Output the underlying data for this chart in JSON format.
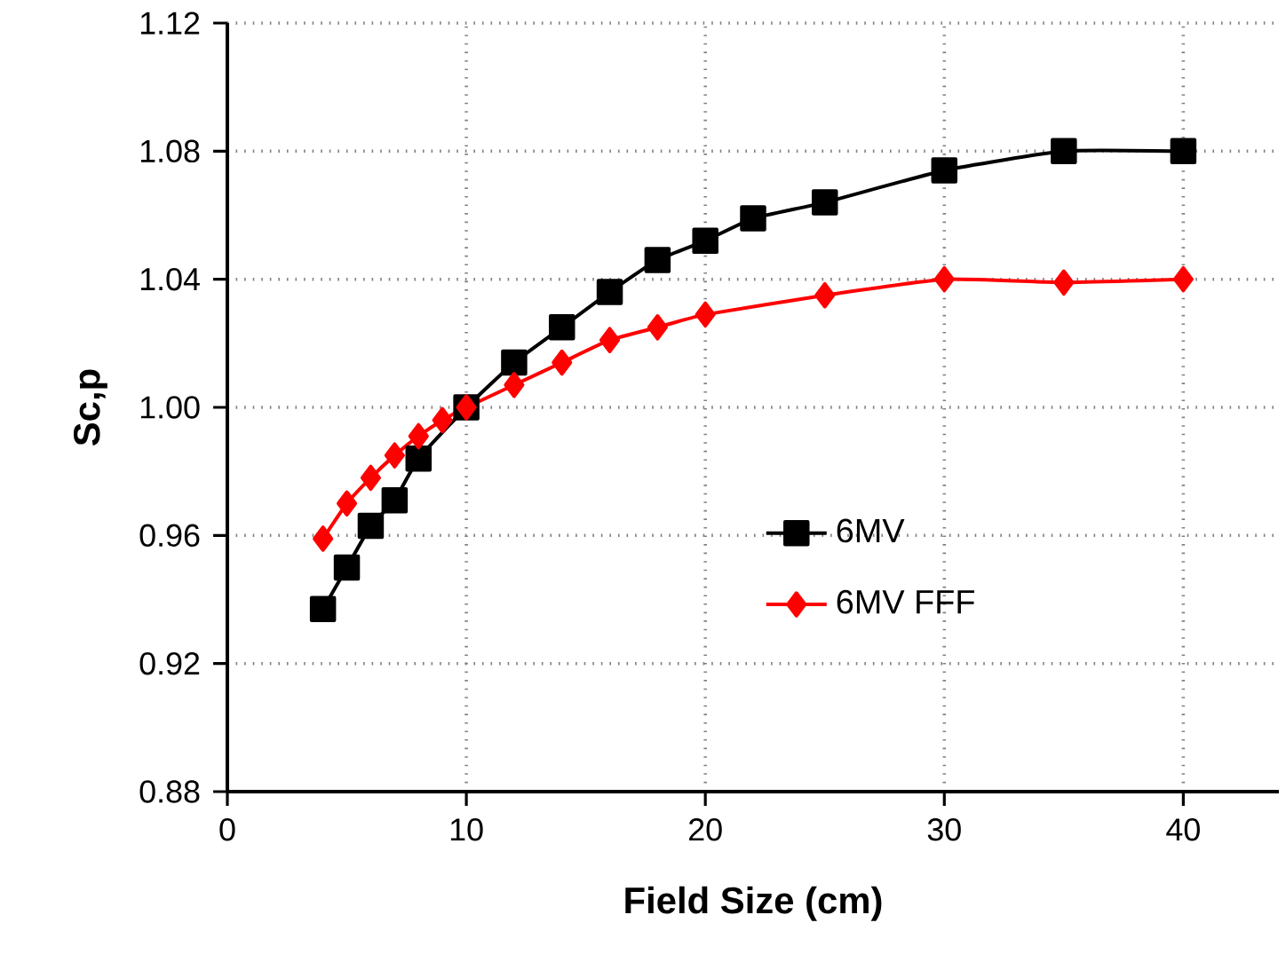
{
  "chart_data": {
    "type": "line",
    "xlabel": "Field Size (cm)",
    "ylabel": "Sc,p",
    "xlim": [
      0,
      44
    ],
    "xticks": [
      0,
      10,
      20,
      30,
      40
    ],
    "ylim": [
      0.88,
      1.12
    ],
    "yticks": [
      {
        "value": 0.88,
        "label": "0.88"
      },
      {
        "value": 0.92,
        "label": "0.92"
      },
      {
        "value": 0.96,
        "label": "0.96"
      },
      {
        "value": 1.0,
        "label": "1.00"
      },
      {
        "value": 1.04,
        "label": "1.04"
      },
      {
        "value": 1.08,
        "label": "1.08"
      },
      {
        "value": 1.12,
        "label": "1.12"
      }
    ],
    "grid": true,
    "legend": "right",
    "series": [
      {
        "name": "6MV",
        "color": "#000000",
        "marker": "square",
        "x": [
          4,
          5,
          6,
          7,
          8,
          10,
          12,
          14,
          16,
          18,
          20,
          22,
          25,
          30,
          35,
          40
        ],
        "values": [
          0.937,
          0.95,
          0.963,
          0.971,
          0.984,
          1.0,
          1.014,
          1.025,
          1.036,
          1.046,
          1.052,
          1.059,
          1.064,
          1.074,
          1.08,
          1.08
        ]
      },
      {
        "name": "6MV FFF",
        "color": "#ff0000",
        "marker": "diamond",
        "x": [
          4,
          5,
          6,
          7,
          8,
          9,
          10,
          12,
          14,
          16,
          18,
          20,
          25,
          30,
          35,
          40
        ],
        "values": [
          0.959,
          0.97,
          0.978,
          0.985,
          0.991,
          0.996,
          1.0,
          1.007,
          1.014,
          1.021,
          1.025,
          1.029,
          1.035,
          1.04,
          1.039,
          1.04
        ]
      }
    ]
  }
}
